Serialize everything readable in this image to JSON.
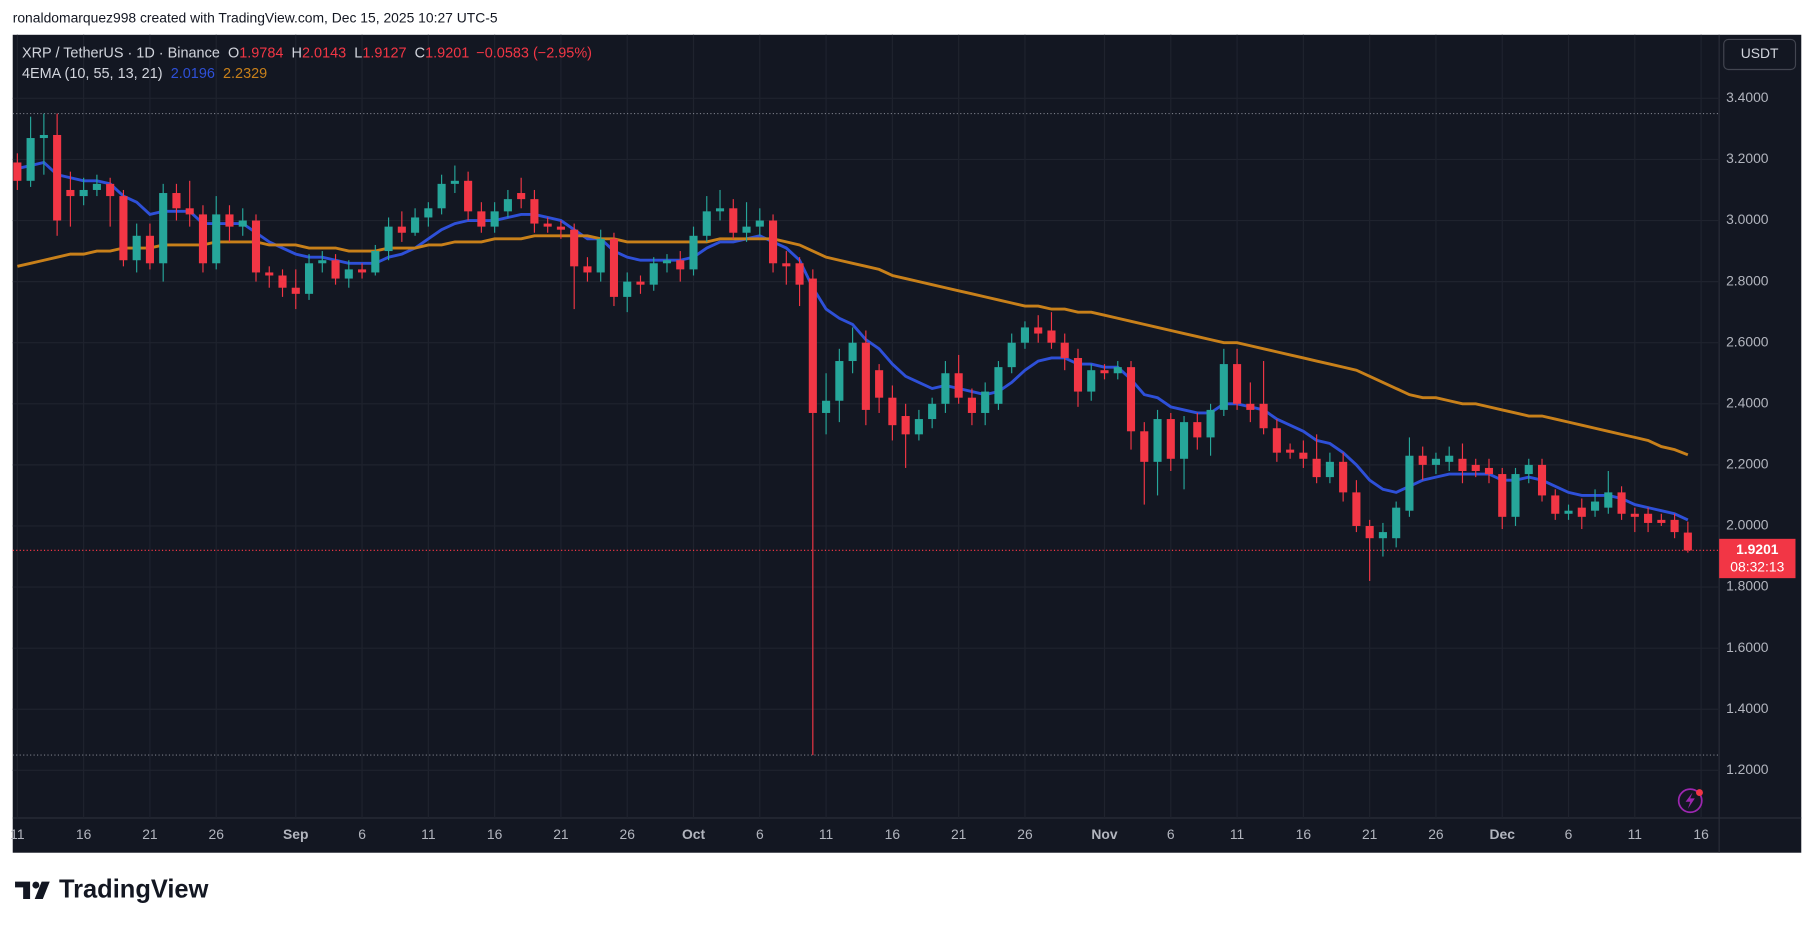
{
  "header": "ronaldomarquez998 created with TradingView.com, Dec 15, 2025 10:27 UTC-5",
  "brand": "TradingView",
  "chart_data": {
    "type": "candlestick",
    "symbol": "XRP / TetherUS · 1D · Binance",
    "ohlc_labels": [
      "O",
      "H",
      "L",
      "C"
    ],
    "change": "−0.0583 (−2.95%)",
    "indicator": "4EMA (10, 55, 13, 21)",
    "currency": "USDT",
    "countdown": "08:32:13",
    "up_color": "#26a69a",
    "down_color": "#f23645",
    "grid": true,
    "x": [
      "2025-08-11",
      "2025-08-12",
      "2025-08-13",
      "2025-08-14",
      "2025-08-15",
      "2025-08-16",
      "2025-08-17",
      "2025-08-18",
      "2025-08-19",
      "2025-08-20",
      "2025-08-21",
      "2025-08-22",
      "2025-08-23",
      "2025-08-24",
      "2025-08-25",
      "2025-08-26",
      "2025-08-27",
      "2025-08-28",
      "2025-08-29",
      "2025-08-30",
      "2025-08-31",
      "2025-09-01",
      "2025-09-02",
      "2025-09-03",
      "2025-09-04",
      "2025-09-05",
      "2025-09-06",
      "2025-09-07",
      "2025-09-08",
      "2025-09-09",
      "2025-09-10",
      "2025-09-11",
      "2025-09-12",
      "2025-09-13",
      "2025-09-14",
      "2025-09-15",
      "2025-09-16",
      "2025-09-17",
      "2025-09-18",
      "2025-09-19",
      "2025-09-20",
      "2025-09-21",
      "2025-09-22",
      "2025-09-23",
      "2025-09-24",
      "2025-09-25",
      "2025-09-26",
      "2025-09-27",
      "2025-09-28",
      "2025-09-29",
      "2025-09-30",
      "2025-10-01",
      "2025-10-02",
      "2025-10-03",
      "2025-10-04",
      "2025-10-05",
      "2025-10-06",
      "2025-10-07",
      "2025-10-08",
      "2025-10-09",
      "2025-10-10",
      "2025-10-11",
      "2025-10-12",
      "2025-10-13",
      "2025-10-14",
      "2025-10-15",
      "2025-10-16",
      "2025-10-17",
      "2025-10-18",
      "2025-10-19",
      "2025-10-20",
      "2025-10-21",
      "2025-10-22",
      "2025-10-23",
      "2025-10-24",
      "2025-10-25",
      "2025-10-26",
      "2025-10-27",
      "2025-10-28",
      "2025-10-29",
      "2025-10-30",
      "2025-10-31",
      "2025-11-01",
      "2025-11-02",
      "2025-11-03",
      "2025-11-04",
      "2025-11-05",
      "2025-11-06",
      "2025-11-07",
      "2025-11-08",
      "2025-11-09",
      "2025-11-10",
      "2025-11-11",
      "2025-11-12",
      "2025-11-13",
      "2025-11-14",
      "2025-11-15",
      "2025-11-16",
      "2025-11-17",
      "2025-11-18",
      "2025-11-19",
      "2025-11-20",
      "2025-11-21",
      "2025-11-22",
      "2025-11-23",
      "2025-11-24",
      "2025-11-25",
      "2025-11-26",
      "2025-11-27",
      "2025-11-28",
      "2025-11-29",
      "2025-11-30",
      "2025-12-01",
      "2025-12-02",
      "2025-12-03",
      "2025-12-04",
      "2025-12-05",
      "2025-12-06",
      "2025-12-07",
      "2025-12-08",
      "2025-12-09",
      "2025-12-10",
      "2025-12-11",
      "2025-12-12",
      "2025-12-13",
      "2025-12-14",
      "2025-12-15"
    ],
    "open": [
      3.19,
      3.13,
      3.27,
      3.28,
      3.1,
      3.08,
      3.1,
      3.12,
      3.08,
      2.87,
      2.95,
      2.86,
      3.09,
      3.04,
      3.02,
      2.86,
      3.02,
      2.98,
      3.0,
      2.83,
      2.82,
      2.78,
      2.76,
      2.86,
      2.87,
      2.81,
      2.84,
      2.83,
      2.9,
      2.98,
      2.96,
      3.01,
      3.04,
      3.12,
      3.13,
      3.03,
      2.98,
      3.03,
      3.09,
      3.07,
      2.99,
      2.98,
      2.97,
      2.85,
      2.83,
      2.94,
      2.75,
      2.8,
      2.79,
      2.86,
      2.87,
      2.84,
      2.95,
      3.03,
      3.04,
      2.96,
      2.98,
      3.0,
      2.86,
      2.86,
      2.81,
      2.37,
      2.41,
      2.54,
      2.6,
      2.51,
      2.42,
      2.36,
      2.3,
      2.35,
      2.4,
      2.5,
      2.42,
      2.37,
      2.4,
      2.52,
      2.6,
      2.65,
      2.64,
      2.6,
      2.55,
      2.44,
      2.51,
      2.5,
      2.52,
      2.31,
      2.21,
      2.35,
      2.22,
      2.34,
      2.29,
      2.38,
      2.53,
      2.4,
      2.4,
      2.32,
      2.25,
      2.24,
      2.22,
      2.16,
      2.21,
      2.11,
      2.0,
      1.96,
      1.96,
      2.05,
      2.23,
      2.2,
      2.21,
      2.22,
      2.2,
      2.19,
      2.17,
      2.03,
      2.17,
      2.2,
      2.1,
      2.04,
      2.06,
      2.05,
      2.06,
      2.11,
      2.04,
      2.04,
      2.02,
      2.02,
      1.9784
    ],
    "high": [
      3.22,
      3.34,
      3.35,
      3.35,
      3.16,
      3.14,
      3.15,
      3.14,
      3.1,
      2.99,
      2.99,
      3.12,
      3.12,
      3.13,
      3.05,
      3.08,
      3.05,
      3.04,
      3.02,
      2.85,
      2.84,
      2.84,
      2.89,
      2.9,
      2.89,
      2.87,
      2.86,
      2.92,
      3.01,
      3.03,
      3.04,
      3.06,
      3.15,
      3.18,
      3.16,
      3.06,
      3.06,
      3.1,
      3.14,
      3.1,
      3.01,
      3.0,
      2.99,
      2.88,
      2.97,
      2.96,
      2.83,
      2.82,
      2.88,
      2.89,
      2.9,
      2.98,
      3.08,
      3.1,
      3.07,
      3.06,
      3.04,
      3.02,
      2.9,
      2.88,
      2.84,
      2.5,
      2.58,
      2.65,
      2.64,
      2.53,
      2.46,
      2.4,
      2.38,
      2.42,
      2.54,
      2.56,
      2.45,
      2.47,
      2.54,
      2.63,
      2.67,
      2.69,
      2.7,
      2.63,
      2.58,
      2.53,
      2.53,
      2.54,
      2.54,
      2.34,
      2.38,
      2.37,
      2.36,
      2.37,
      2.4,
      2.58,
      2.58,
      2.47,
      2.54,
      2.35,
      2.27,
      2.28,
      2.3,
      2.24,
      2.24,
      2.15,
      2.02,
      2.01,
      2.08,
      2.29,
      2.26,
      2.24,
      2.26,
      2.27,
      2.22,
      2.22,
      2.19,
      2.19,
      2.22,
      2.22,
      2.12,
      2.07,
      2.09,
      2.12,
      2.18,
      2.13,
      2.06,
      2.06,
      2.04,
      2.04,
      2.0143
    ],
    "low": [
      3.1,
      3.11,
      3.15,
      2.95,
      2.98,
      3.05,
      3.08,
      2.98,
      2.85,
      2.83,
      2.84,
      2.8,
      3.0,
      2.98,
      2.83,
      2.84,
      2.93,
      2.95,
      2.8,
      2.78,
      2.75,
      2.71,
      2.74,
      2.83,
      2.79,
      2.78,
      2.81,
      2.82,
      2.87,
      2.93,
      2.95,
      2.98,
      3.02,
      3.09,
      3.0,
      2.96,
      2.96,
      3.01,
      3.04,
      2.96,
      2.96,
      2.94,
      2.71,
      2.8,
      2.8,
      2.72,
      2.7,
      2.76,
      2.77,
      2.83,
      2.8,
      2.82,
      2.93,
      3.0,
      2.94,
      2.93,
      2.95,
      2.83,
      2.79,
      2.72,
      1.25,
      2.3,
      2.34,
      2.5,
      2.33,
      2.37,
      2.28,
      2.19,
      2.28,
      2.32,
      2.37,
      2.4,
      2.33,
      2.33,
      2.38,
      2.5,
      2.58,
      2.6,
      2.58,
      2.51,
      2.39,
      2.41,
      2.48,
      2.48,
      2.25,
      2.07,
      2.1,
      2.18,
      2.12,
      2.25,
      2.23,
      2.36,
      2.38,
      2.34,
      2.3,
      2.21,
      2.22,
      2.19,
      2.14,
      2.14,
      2.08,
      1.98,
      1.82,
      1.9,
      1.93,
      2.03,
      2.15,
      2.17,
      2.18,
      2.14,
      2.16,
      2.14,
      1.99,
      2.0,
      2.14,
      2.08,
      2.02,
      2.02,
      1.99,
      2.03,
      2.04,
      2.02,
      1.98,
      1.98,
      2.0,
      1.96,
      1.9127
    ],
    "close": [
      3.13,
      3.27,
      3.28,
      3.0,
      3.08,
      3.1,
      3.12,
      3.08,
      2.87,
      2.95,
      2.86,
      3.09,
      3.04,
      3.02,
      2.86,
      3.02,
      2.98,
      3.0,
      2.83,
      2.82,
      2.78,
      2.76,
      2.86,
      2.87,
      2.81,
      2.84,
      2.83,
      2.9,
      2.98,
      2.96,
      3.01,
      3.04,
      3.12,
      3.13,
      3.03,
      2.98,
      3.03,
      3.07,
      3.07,
      2.99,
      2.98,
      2.97,
      2.85,
      2.83,
      2.94,
      2.75,
      2.8,
      2.79,
      2.86,
      2.87,
      2.84,
      2.95,
      3.03,
      3.04,
      2.96,
      2.98,
      3.0,
      2.86,
      2.85,
      2.79,
      2.37,
      2.41,
      2.54,
      2.6,
      2.38,
      2.42,
      2.33,
      2.3,
      2.35,
      2.4,
      2.5,
      2.42,
      2.37,
      2.44,
      2.52,
      2.6,
      2.65,
      2.63,
      2.6,
      2.55,
      2.44,
      2.51,
      2.5,
      2.52,
      2.31,
      2.21,
      2.35,
      2.22,
      2.34,
      2.29,
      2.38,
      2.53,
      2.4,
      2.38,
      2.32,
      2.24,
      2.24,
      2.22,
      2.16,
      2.21,
      2.11,
      2.0,
      1.96,
      1.98,
      2.06,
      2.23,
      2.2,
      2.22,
      2.23,
      2.18,
      2.18,
      2.17,
      2.03,
      2.17,
      2.2,
      2.1,
      2.04,
      2.05,
      2.03,
      2.08,
      2.11,
      2.04,
      2.03,
      2.01,
      2.01,
      1.98,
      1.9201
    ],
    "series": [
      {
        "color": "#2e50d8",
        "values": [
          3.17,
          3.18,
          3.19,
          3.15,
          3.14,
          3.13,
          3.13,
          3.12,
          3.08,
          3.06,
          3.02,
          3.03,
          3.03,
          3.03,
          2.99,
          2.99,
          2.99,
          2.99,
          2.96,
          2.93,
          2.91,
          2.89,
          2.88,
          2.88,
          2.87,
          2.86,
          2.86,
          2.86,
          2.88,
          2.89,
          2.91,
          2.94,
          2.97,
          2.99,
          3.0,
          3.0,
          3.0,
          3.01,
          3.02,
          3.02,
          3.01,
          3.0,
          2.97,
          2.94,
          2.94,
          2.9,
          2.88,
          2.87,
          2.87,
          2.87,
          2.87,
          2.88,
          2.91,
          2.93,
          2.93,
          2.94,
          2.95,
          2.93,
          2.91,
          2.87,
          2.78,
          2.71,
          2.68,
          2.66,
          2.61,
          2.58,
          2.53,
          2.49,
          2.47,
          2.45,
          2.46,
          2.45,
          2.44,
          2.43,
          2.44,
          2.47,
          2.51,
          2.54,
          2.55,
          2.55,
          2.53,
          2.53,
          2.52,
          2.52,
          2.48,
          2.43,
          2.42,
          2.39,
          2.38,
          2.37,
          2.37,
          2.4,
          2.4,
          2.39,
          2.38,
          2.35,
          2.33,
          2.31,
          2.28,
          2.27,
          2.24,
          2.2,
          2.15,
          2.12,
          2.11,
          2.13,
          2.15,
          2.16,
          2.17,
          2.17,
          2.17,
          2.17,
          2.15,
          2.15,
          2.16,
          2.15,
          2.13,
          2.11,
          2.1,
          2.1,
          2.1,
          2.09,
          2.07,
          2.06,
          2.05,
          2.04,
          2.0196
        ]
      },
      {
        "color": "#c8801a",
        "values": [
          2.85,
          2.86,
          2.87,
          2.88,
          2.89,
          2.89,
          2.9,
          2.9,
          2.91,
          2.91,
          2.91,
          2.92,
          2.92,
          2.92,
          2.92,
          2.93,
          2.93,
          2.93,
          2.93,
          2.92,
          2.92,
          2.92,
          2.91,
          2.91,
          2.91,
          2.9,
          2.9,
          2.9,
          2.91,
          2.91,
          2.91,
          2.92,
          2.92,
          2.93,
          2.93,
          2.93,
          2.94,
          2.94,
          2.94,
          2.95,
          2.95,
          2.95,
          2.95,
          2.95,
          2.94,
          2.94,
          2.93,
          2.93,
          2.93,
          2.93,
          2.93,
          2.93,
          2.93,
          2.94,
          2.94,
          2.94,
          2.94,
          2.94,
          2.93,
          2.92,
          2.9,
          2.88,
          2.87,
          2.86,
          2.85,
          2.84,
          2.82,
          2.81,
          2.8,
          2.79,
          2.78,
          2.77,
          2.76,
          2.75,
          2.74,
          2.73,
          2.72,
          2.72,
          2.71,
          2.71,
          2.7,
          2.7,
          2.69,
          2.68,
          2.67,
          2.66,
          2.65,
          2.64,
          2.63,
          2.62,
          2.61,
          2.6,
          2.6,
          2.59,
          2.58,
          2.57,
          2.56,
          2.55,
          2.54,
          2.53,
          2.52,
          2.51,
          2.49,
          2.47,
          2.45,
          2.43,
          2.42,
          2.42,
          2.41,
          2.4,
          2.4,
          2.39,
          2.38,
          2.37,
          2.36,
          2.36,
          2.35,
          2.34,
          2.33,
          2.32,
          2.31,
          2.3,
          2.29,
          2.28,
          2.26,
          2.25,
          2.2329
        ]
      }
    ],
    "range_lines": [
      3.35,
      1.25
    ],
    "xticks": [
      {
        "value": "2025-08-11",
        "label": "11"
      },
      {
        "value": "2025-08-16",
        "label": "16"
      },
      {
        "value": "2025-08-21",
        "label": "21"
      },
      {
        "value": "2025-08-26",
        "label": "26"
      },
      {
        "value": "2025-09-01",
        "label": "Sep"
      },
      {
        "value": "2025-09-06",
        "label": "6"
      },
      {
        "value": "2025-09-11",
        "label": "11"
      },
      {
        "value": "2025-09-16",
        "label": "16"
      },
      {
        "value": "2025-09-21",
        "label": "21"
      },
      {
        "value": "2025-09-26",
        "label": "26"
      },
      {
        "value": "2025-10-01",
        "label": "Oct"
      },
      {
        "value": "2025-10-06",
        "label": "6"
      },
      {
        "value": "2025-10-11",
        "label": "11"
      },
      {
        "value": "2025-10-16",
        "label": "16"
      },
      {
        "value": "2025-10-21",
        "label": "21"
      },
      {
        "value": "2025-10-26",
        "label": "26"
      },
      {
        "value": "2025-11-01",
        "label": "Nov"
      },
      {
        "value": "2025-11-06",
        "label": "6"
      },
      {
        "value": "2025-11-11",
        "label": "11"
      },
      {
        "value": "2025-11-16",
        "label": "16"
      },
      {
        "value": "2025-11-21",
        "label": "21"
      },
      {
        "value": "2025-11-26",
        "label": "26"
      },
      {
        "value": "2025-12-01",
        "label": "Dec"
      },
      {
        "value": "2025-12-06",
        "label": "6"
      },
      {
        "value": "2025-12-11",
        "label": "11"
      },
      {
        "value": "2025-12-16",
        "label": "16"
      }
    ],
    "ylim": [
      1.044,
      3.608
    ],
    "yticks": [
      {
        "value": 3.4,
        "label": "3.4000"
      },
      {
        "value": 3.2,
        "label": "3.2000"
      },
      {
        "value": 3.0,
        "label": "3.0000"
      },
      {
        "value": 2.8,
        "label": "2.8000"
      },
      {
        "value": 2.6,
        "label": "2.6000"
      },
      {
        "value": 2.4,
        "label": "2.4000"
      },
      {
        "value": 2.2,
        "label": "2.2000"
      },
      {
        "value": 2.0,
        "label": "2.0000"
      },
      {
        "value": 1.8,
        "label": "1.8000"
      },
      {
        "value": 1.6,
        "label": "1.6000"
      },
      {
        "value": 1.4,
        "label": "1.4000"
      },
      {
        "value": 1.2,
        "label": "1.2000"
      }
    ]
  }
}
